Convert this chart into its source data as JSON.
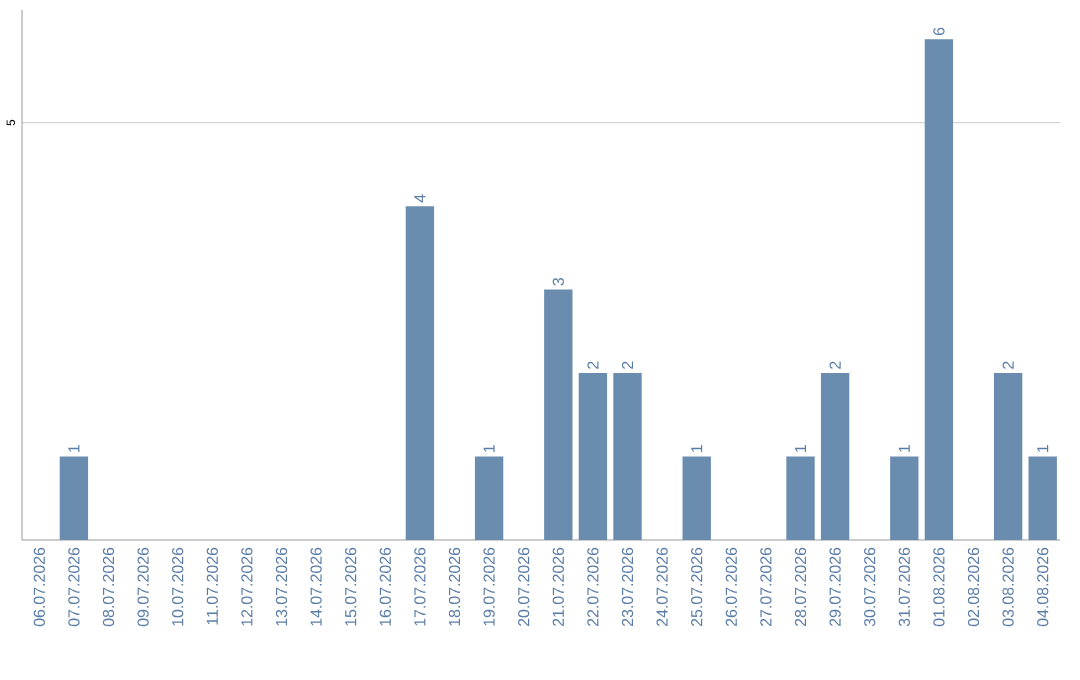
{
  "chart_data": {
    "type": "bar",
    "categories": [
      "06.07.2026",
      "07.07.2026",
      "08.07.2026",
      "09.07.2026",
      "10.07.2026",
      "11.07.2026",
      "12.07.2026",
      "13.07.2026",
      "14.07.2026",
      "15.07.2026",
      "16.07.2026",
      "17.07.2026",
      "18.07.2026",
      "19.07.2026",
      "20.07.2026",
      "21.07.2026",
      "22.07.2026",
      "23.07.2026",
      "24.07.2026",
      "25.07.2026",
      "26.07.2026",
      "27.07.2026",
      "28.07.2026",
      "29.07.2026",
      "30.07.2026",
      "31.07.2026",
      "01.08.2026",
      "02.08.2026",
      "03.08.2026",
      "04.08.2026"
    ],
    "values": [
      0,
      1,
      0,
      0,
      0,
      0,
      0,
      0,
      0,
      0,
      0,
      4,
      0,
      1,
      0,
      3,
      2,
      2,
      0,
      1,
      0,
      0,
      1,
      2,
      0,
      1,
      6,
      0,
      2,
      1
    ],
    "value_labels": [
      null,
      "1",
      null,
      null,
      null,
      null,
      null,
      null,
      null,
      null,
      null,
      "4",
      null,
      "1",
      null,
      "3",
      "2",
      "2",
      null,
      "1",
      null,
      null,
      "1",
      "2",
      null,
      "1",
      "6",
      null,
      "2",
      "1"
    ],
    "color": "#6a8caf",
    "ylim": [
      0,
      6.35
    ],
    "yticks": [
      5
    ],
    "grid": "y"
  }
}
